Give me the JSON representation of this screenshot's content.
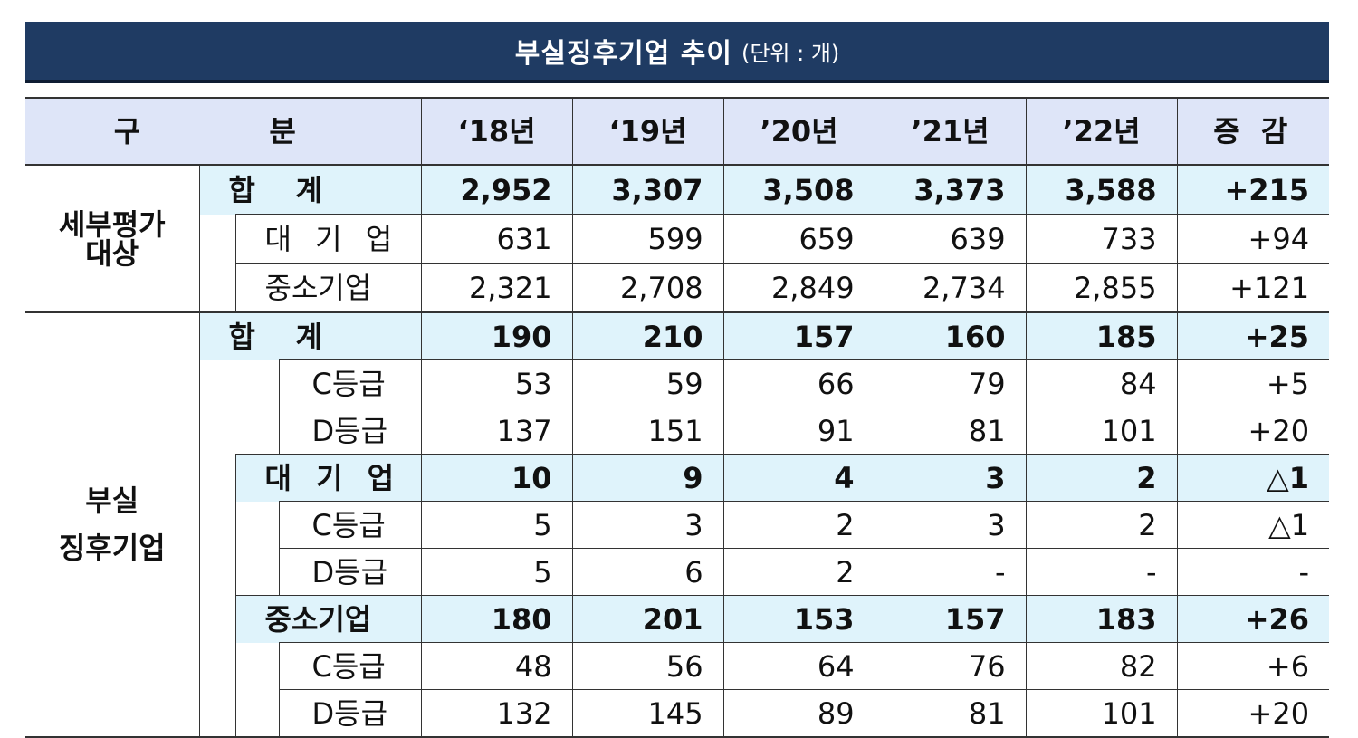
{
  "title": "부실징후기업 추이",
  "unit": "(단위 : 개)",
  "headers": [
    "구  분",
    "‘18년",
    "‘19년",
    "’20년",
    "’21년",
    "’22년",
    "증 감"
  ],
  "groups": {
    "eval": "세부평가\n대상",
    "distress": "부실\n징후기업"
  },
  "eval": {
    "total": {
      "label": "합    계",
      "values": [
        "2,952",
        "3,307",
        "3,508",
        "3,373",
        "3,588",
        "+215"
      ]
    },
    "large": {
      "label": "대 기 업",
      "values": [
        "631",
        "599",
        "659",
        "639",
        "733",
        "+94"
      ]
    },
    "sme": {
      "label": "중소기업",
      "values": [
        "2,321",
        "2,708",
        "2,849",
        "2,734",
        "2,855",
        "+121"
      ]
    }
  },
  "distress": {
    "total": {
      "label": "합    계",
      "values": [
        "190",
        "210",
        "157",
        "160",
        "185",
        "+25"
      ]
    },
    "total_c": {
      "label": "C등급",
      "values": [
        "53",
        "59",
        "66",
        "79",
        "84",
        "+5"
      ]
    },
    "total_d": {
      "label": "D등급",
      "values": [
        "137",
        "151",
        "91",
        "81",
        "101",
        "+20"
      ]
    },
    "large": {
      "label": "대 기 업",
      "values": [
        "10",
        "9",
        "4",
        "3",
        "2",
        "△1"
      ]
    },
    "large_c": {
      "label": "C등급",
      "values": [
        "5",
        "3",
        "2",
        "3",
        "2",
        "△1"
      ]
    },
    "large_d": {
      "label": "D등급",
      "values": [
        "5",
        "6",
        "2",
        "-",
        "-",
        "-"
      ]
    },
    "sme": {
      "label": "중소기업",
      "values": [
        "180",
        "201",
        "153",
        "157",
        "183",
        "+26"
      ]
    },
    "sme_c": {
      "label": "C등급",
      "values": [
        "48",
        "56",
        "64",
        "76",
        "82",
        "+6"
      ]
    },
    "sme_d": {
      "label": "D등급",
      "values": [
        "132",
        "145",
        "89",
        "81",
        "101",
        "+20"
      ]
    }
  }
}
